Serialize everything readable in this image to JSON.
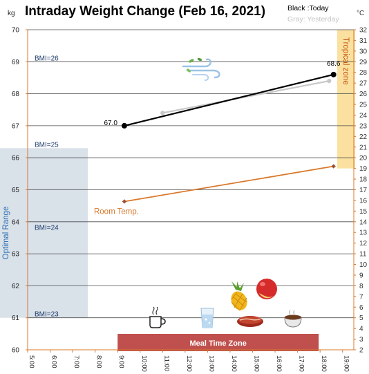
{
  "chart_data": {
    "type": "line",
    "title": "Intraday Weight Change (Feb 16, 2021)",
    "legend": {
      "today": "Black :Today",
      "yesterday": "Gray: Yesterday"
    },
    "left_axis": {
      "unit": "kg",
      "min": 60,
      "max": 70,
      "ticks": [
        60,
        61,
        62,
        63,
        64,
        65,
        66,
        67,
        68,
        69,
        70
      ]
    },
    "right_axis": {
      "unit": "°C",
      "min": 2,
      "max": 32,
      "ticks": [
        2,
        3,
        4,
        5,
        6,
        7,
        8,
        9,
        10,
        11,
        12,
        13,
        14,
        15,
        16,
        17,
        18,
        19,
        20,
        21,
        22,
        23,
        24,
        25,
        26,
        27,
        28,
        29,
        30,
        31,
        32
      ]
    },
    "x_axis": {
      "min": 5,
      "max": 19.5,
      "ticks": [
        5,
        6,
        7,
        8,
        9,
        10,
        11,
        12,
        13,
        14,
        15,
        16,
        17,
        18,
        19
      ],
      "tick_labels": [
        "5:00",
        "6:00",
        "7:00",
        "8:00",
        "9:00",
        "10:00",
        "11:00",
        "12:00",
        "13:00",
        "14:00",
        "15:00",
        "16:00",
        "17:00",
        "18:00",
        "19:00"
      ]
    },
    "series": [
      {
        "name": "Today",
        "axis": "left",
        "color": "#000000",
        "points": [
          {
            "x": 9.3,
            "y": 67.0,
            "label": "67.0"
          },
          {
            "x": 18.6,
            "y": 68.6,
            "label": "68.6"
          }
        ]
      },
      {
        "name": "Yesterday",
        "axis": "left",
        "color": "#c8c8c8",
        "points": [
          {
            "x": 11.0,
            "y": 67.4
          },
          {
            "x": 18.4,
            "y": 68.4
          }
        ]
      },
      {
        "name": "Room Temp.",
        "axis": "right",
        "color": "#d9782a",
        "points": [
          {
            "x": 9.3,
            "y": 15.9
          },
          {
            "x": 18.6,
            "y": 19.2
          }
        ]
      }
    ],
    "bmi_lines": [
      {
        "label": "BMI=26",
        "y": 69.0
      },
      {
        "label": "BMI=25",
        "y": 66.3
      },
      {
        "label": "BMI=24",
        "y": 63.7
      },
      {
        "label": "BMI=23",
        "y": 61.0
      }
    ],
    "zones": {
      "optimal": {
        "label": "Optimal Range",
        "from": 61.0,
        "to": 66.3,
        "color": "#d9e1e9"
      },
      "tropical": {
        "label": "Tropical zone",
        "from_c": 19.0,
        "to_c": 32.0,
        "color": "#fbe0a0"
      },
      "meal_time": {
        "label": "Meal Time Zone",
        "from": 9.0,
        "to": 18.0,
        "color": "#c0504d"
      }
    },
    "grid": true
  },
  "icons": {
    "wind": "wind-icon",
    "pineapple": "pineapple-icon",
    "apple": "apple-icon",
    "coffee": "coffee-cup-icon",
    "water": "water-glass-icon",
    "steak": "steak-icon",
    "soup": "soup-bowl-icon"
  }
}
